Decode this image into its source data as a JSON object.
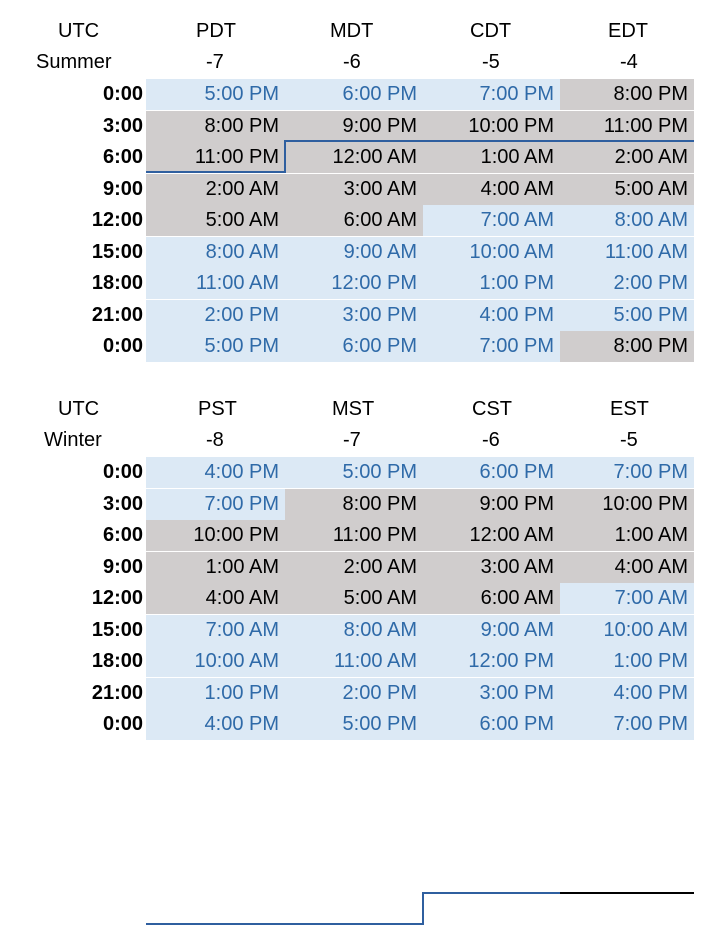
{
  "summer": {
    "headers": {
      "utc": "UTC",
      "season": "Summer",
      "zones": [
        "PDT",
        "MDT",
        "CDT",
        "EDT"
      ],
      "offsets": [
        "-7",
        "-6",
        "-5",
        "-4"
      ]
    },
    "rows": [
      {
        "utc": "0:00",
        "times": [
          "5:00 PM",
          "6:00 PM",
          "7:00 PM",
          "8:00 PM"
        ]
      },
      {
        "utc": "3:00",
        "times": [
          "8:00 PM",
          "9:00 PM",
          "10:00 PM",
          "11:00 PM"
        ]
      },
      {
        "utc": "6:00",
        "times": [
          "11:00 PM",
          "12:00 AM",
          "1:00 AM",
          "2:00 AM"
        ]
      },
      {
        "utc": "9:00",
        "times": [
          "2:00 AM",
          "3:00 AM",
          "4:00 AM",
          "5:00 AM"
        ]
      },
      {
        "utc": "12:00",
        "times": [
          "5:00 AM",
          "6:00 AM",
          "7:00 AM",
          "8:00 AM"
        ]
      },
      {
        "utc": "15:00",
        "times": [
          "8:00 AM",
          "9:00 AM",
          "10:00 AM",
          "11:00 AM"
        ]
      },
      {
        "utc": "18:00",
        "times": [
          "11:00 AM",
          "12:00 PM",
          "1:00 PM",
          "2:00 PM"
        ]
      },
      {
        "utc": "21:00",
        "times": [
          "2:00 PM",
          "3:00 PM",
          "4:00 PM",
          "5:00 PM"
        ]
      },
      {
        "utc": "0:00",
        "times": [
          "5:00 PM",
          "6:00 PM",
          "7:00 PM",
          "8:00 PM"
        ]
      }
    ]
  },
  "winter": {
    "headers": {
      "utc": "UTC",
      "season": "Winter",
      "zones": [
        "PST",
        "MST",
        "CST",
        "EST"
      ],
      "offsets": [
        "-8",
        "-7",
        "-6",
        "-5"
      ]
    },
    "rows": [
      {
        "utc": "0:00",
        "times": [
          "4:00 PM",
          "5:00 PM",
          "6:00 PM",
          "7:00 PM"
        ]
      },
      {
        "utc": "3:00",
        "times": [
          "7:00 PM",
          "8:00 PM",
          "9:00 PM",
          "10:00 PM"
        ]
      },
      {
        "utc": "6:00",
        "times": [
          "10:00 PM",
          "11:00 PM",
          "12:00 AM",
          "1:00 AM"
        ]
      },
      {
        "utc": "9:00",
        "times": [
          "1:00 AM",
          "2:00 AM",
          "3:00 AM",
          "4:00 AM"
        ]
      },
      {
        "utc": "12:00",
        "times": [
          "4:00 AM",
          "5:00 AM",
          "6:00 AM",
          "7:00 AM"
        ]
      },
      {
        "utc": "15:00",
        "times": [
          "7:00 AM",
          "8:00 AM",
          "9:00 AM",
          "10:00 AM"
        ]
      },
      {
        "utc": "18:00",
        "times": [
          "10:00 AM",
          "11:00 AM",
          "12:00 PM",
          "1:00 PM"
        ]
      },
      {
        "utc": "21:00",
        "times": [
          "1:00 PM",
          "2:00 PM",
          "3:00 PM",
          "4:00 PM"
        ]
      },
      {
        "utc": "0:00",
        "times": [
          "4:00 PM",
          "5:00 PM",
          "6:00 PM",
          "7:00 PM"
        ]
      }
    ]
  },
  "colors": {
    "day_fill": "#dce9f5",
    "day_text": "#2f6aa8",
    "night_fill": "#d0cdcd",
    "night_text": "#000000",
    "date_line": "#2f5f9f"
  }
}
